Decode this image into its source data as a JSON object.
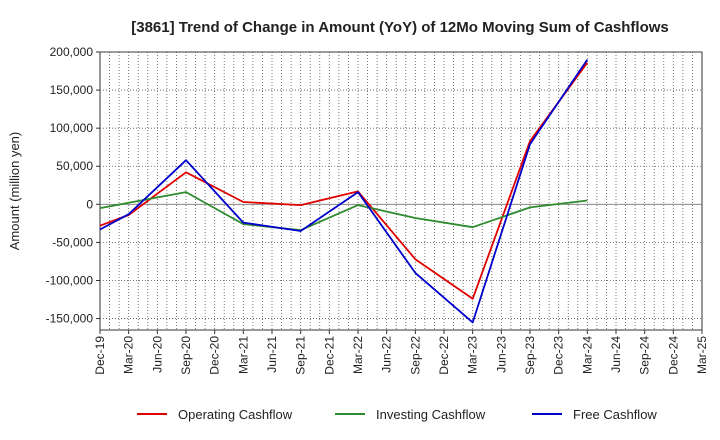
{
  "chart_data": {
    "type": "line",
    "title": "[3861]  Trend of Change in Amount (YoY) of 12Mo Moving Sum of Cashflows",
    "xlabel": "",
    "ylabel": "Amount (million yen)",
    "ylim": [
      -165000,
      200000
    ],
    "yticks": [
      200000,
      150000,
      100000,
      50000,
      0,
      -50000,
      -100000,
      -150000
    ],
    "ytick_labels": [
      "200,000",
      "150,000",
      "100,000",
      "50,000",
      "0",
      "-50,000",
      "-100,000",
      "-150,000"
    ],
    "categories": [
      "Dec-19",
      "Mar-20",
      "Jun-20",
      "Sep-20",
      "Dec-20",
      "Mar-21",
      "Jun-21",
      "Sep-21",
      "Dec-21",
      "Mar-22",
      "Jun-22",
      "Sep-22",
      "Dec-22",
      "Mar-23",
      "Jun-23",
      "Sep-23",
      "Dec-23",
      "Mar-24",
      "Jun-24",
      "Sep-24",
      "Dec-24",
      "Mar-25"
    ],
    "grid": true,
    "legend_position": "bottom",
    "series": [
      {
        "name": "Operating Cashflow",
        "color": "#e00000",
        "values": [
          -28000,
          -14000,
          null,
          42000,
          null,
          3000,
          null,
          -1000,
          null,
          17000,
          null,
          -72000,
          null,
          -124000,
          null,
          83000,
          null,
          186000,
          null,
          null,
          null,
          null
        ]
      },
      {
        "name": "Investing Cashflow",
        "color": "#2e8b2e",
        "values": [
          -5000,
          2000,
          null,
          16000,
          null,
          -26000,
          null,
          -34000,
          null,
          -1000,
          null,
          -18000,
          null,
          -30000,
          null,
          -4000,
          null,
          5000,
          null,
          null,
          null,
          null
        ]
      },
      {
        "name": "Free Cashflow",
        "color": "#0000cc",
        "values": [
          -33000,
          -13000,
          null,
          58000,
          null,
          -24000,
          null,
          -35000,
          null,
          16000,
          null,
          -90000,
          null,
          -155000,
          null,
          79000,
          null,
          190000,
          null,
          null,
          null,
          null
        ]
      }
    ]
  }
}
